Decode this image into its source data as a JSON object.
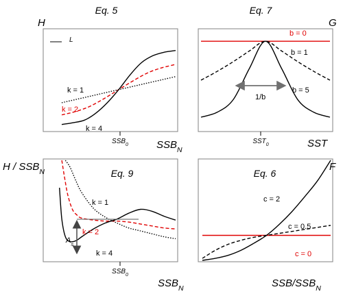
{
  "colors": {
    "black": "#000000",
    "red": "#e00000",
    "frame": "#8c8c8c",
    "arrow": "#707070"
  },
  "chart_data": [
    {
      "id": "eq5",
      "type": "line",
      "title": "Eq. 5",
      "ylabel": "H",
      "xlabel": "SSB_N",
      "xtick": "SSB_0",
      "y_mark_label": "L",
      "xlim": [
        0,
        1
      ],
      "ylim": [
        0,
        1
      ],
      "series": [
        {
          "name": "k = 1",
          "color": "#000000",
          "style": "dotted",
          "x": [
            0,
            0.25,
            0.5,
            0.75,
            1
          ],
          "y": [
            0.3,
            0.375,
            0.45,
            0.525,
            0.6
          ]
        },
        {
          "name": "k = 2",
          "color": "#e00000",
          "style": "dashed",
          "x": [
            0,
            0.125,
            0.25,
            0.375,
            0.5,
            0.625,
            0.75,
            0.875,
            1
          ],
          "y": [
            0.16,
            0.2,
            0.26,
            0.35,
            0.45,
            0.55,
            0.64,
            0.7,
            0.74
          ]
        },
        {
          "name": "k = 4",
          "color": "#000000",
          "style": "solid",
          "x": [
            0,
            0.1,
            0.2,
            0.3,
            0.4,
            0.5,
            0.6,
            0.7,
            0.8,
            0.9,
            1
          ],
          "y": [
            0.05,
            0.07,
            0.1,
            0.18,
            0.3,
            0.45,
            0.62,
            0.76,
            0.84,
            0.88,
            0.9
          ]
        }
      ]
    },
    {
      "id": "eq7",
      "type": "line",
      "title": "Eq. 7",
      "ylabel": "G",
      "xlabel": "SST",
      "xtick": "SST_0",
      "xlim": [
        -1,
        1
      ],
      "ylim": [
        0,
        1
      ],
      "width_label": "1/b",
      "series": [
        {
          "name": "b = 0",
          "color": "#e00000",
          "style": "solid",
          "x": [
            -1,
            1
          ],
          "y": [
            0.9,
            0.9
          ]
        },
        {
          "name": "b = 1",
          "color": "#000000",
          "style": "dashed",
          "x": [
            -1,
            -0.75,
            -0.5,
            -0.25,
            0,
            0.25,
            0.5,
            0.75,
            1
          ],
          "y": [
            0.5,
            0.59,
            0.69,
            0.8,
            0.9,
            0.8,
            0.69,
            0.59,
            0.5
          ]
        },
        {
          "name": "b = 5",
          "color": "#000000",
          "style": "solid",
          "x": [
            -1,
            -0.75,
            -0.5,
            -0.25,
            0,
            0.25,
            0.5,
            0.75,
            1
          ],
          "y": [
            0.12,
            0.17,
            0.3,
            0.62,
            0.9,
            0.62,
            0.3,
            0.17,
            0.12
          ]
        }
      ]
    },
    {
      "id": "eq9",
      "type": "line",
      "title": "Eq. 9",
      "ylabel": "H / SSB_N",
      "xlabel": "SSB_N",
      "xtick": "SSB_0",
      "xlim": [
        0,
        1
      ],
      "ylim": [
        0,
        1
      ],
      "amplitude_label": "A_s",
      "series": [
        {
          "name": "k = 1",
          "color": "#000000",
          "style": "dotted",
          "x": [
            0.06,
            0.1,
            0.15,
            0.2,
            0.3,
            0.4,
            0.5,
            0.6,
            0.7,
            0.8,
            0.9,
            1
          ],
          "y": [
            1.0,
            0.93,
            0.79,
            0.67,
            0.51,
            0.42,
            0.36,
            0.31,
            0.28,
            0.25,
            0.22,
            0.2
          ]
        },
        {
          "name": "k = 2",
          "color": "#e00000",
          "style": "dashed",
          "x": [
            0.03,
            0.05,
            0.08,
            0.12,
            0.16,
            0.2,
            0.3,
            0.4,
            0.5,
            0.6,
            0.7,
            0.8,
            0.9,
            1
          ],
          "y": [
            1.0,
            0.85,
            0.65,
            0.5,
            0.44,
            0.41,
            0.39,
            0.38,
            0.38,
            0.37,
            0.35,
            0.33,
            0.31,
            0.3
          ]
        },
        {
          "name": "k = 4",
          "color": "#000000",
          "style": "solid",
          "x": [
            0.01,
            0.03,
            0.06,
            0.1,
            0.15,
            0.2,
            0.3,
            0.4,
            0.5,
            0.6,
            0.7,
            0.8,
            0.9,
            1
          ],
          "y": [
            0.72,
            0.4,
            0.22,
            0.17,
            0.18,
            0.22,
            0.3,
            0.36,
            0.4,
            0.46,
            0.5,
            0.48,
            0.43,
            0.39
          ]
        }
      ]
    },
    {
      "id": "eq6",
      "type": "line",
      "title": "Eq. 6",
      "ylabel": "F",
      "xlabel": "SSB/SSB_N",
      "xlim": [
        0,
        1
      ],
      "ylim": [
        0,
        1
      ],
      "series": [
        {
          "name": "c = 0",
          "color": "#e00000",
          "style": "solid",
          "x": [
            0,
            1
          ],
          "y": [
            0.25,
            0.25
          ]
        },
        {
          "name": "c = 0.5",
          "color": "#000000",
          "style": "dashed",
          "x": [
            0,
            0.1,
            0.2,
            0.3,
            0.4,
            0.5,
            0.6,
            0.7,
            0.8,
            0.9,
            1
          ],
          "y": [
            0.02,
            0.1,
            0.16,
            0.2,
            0.23,
            0.25,
            0.27,
            0.29,
            0.31,
            0.33,
            0.35
          ]
        },
        {
          "name": "c = 2",
          "color": "#000000",
          "style": "solid",
          "x": [
            0,
            0.1,
            0.2,
            0.3,
            0.4,
            0.5,
            0.6,
            0.7,
            0.8,
            0.9,
            1
          ],
          "y": [
            0.0,
            0.02,
            0.05,
            0.1,
            0.17,
            0.25,
            0.36,
            0.49,
            0.64,
            0.8,
            1.0
          ]
        }
      ]
    }
  ]
}
